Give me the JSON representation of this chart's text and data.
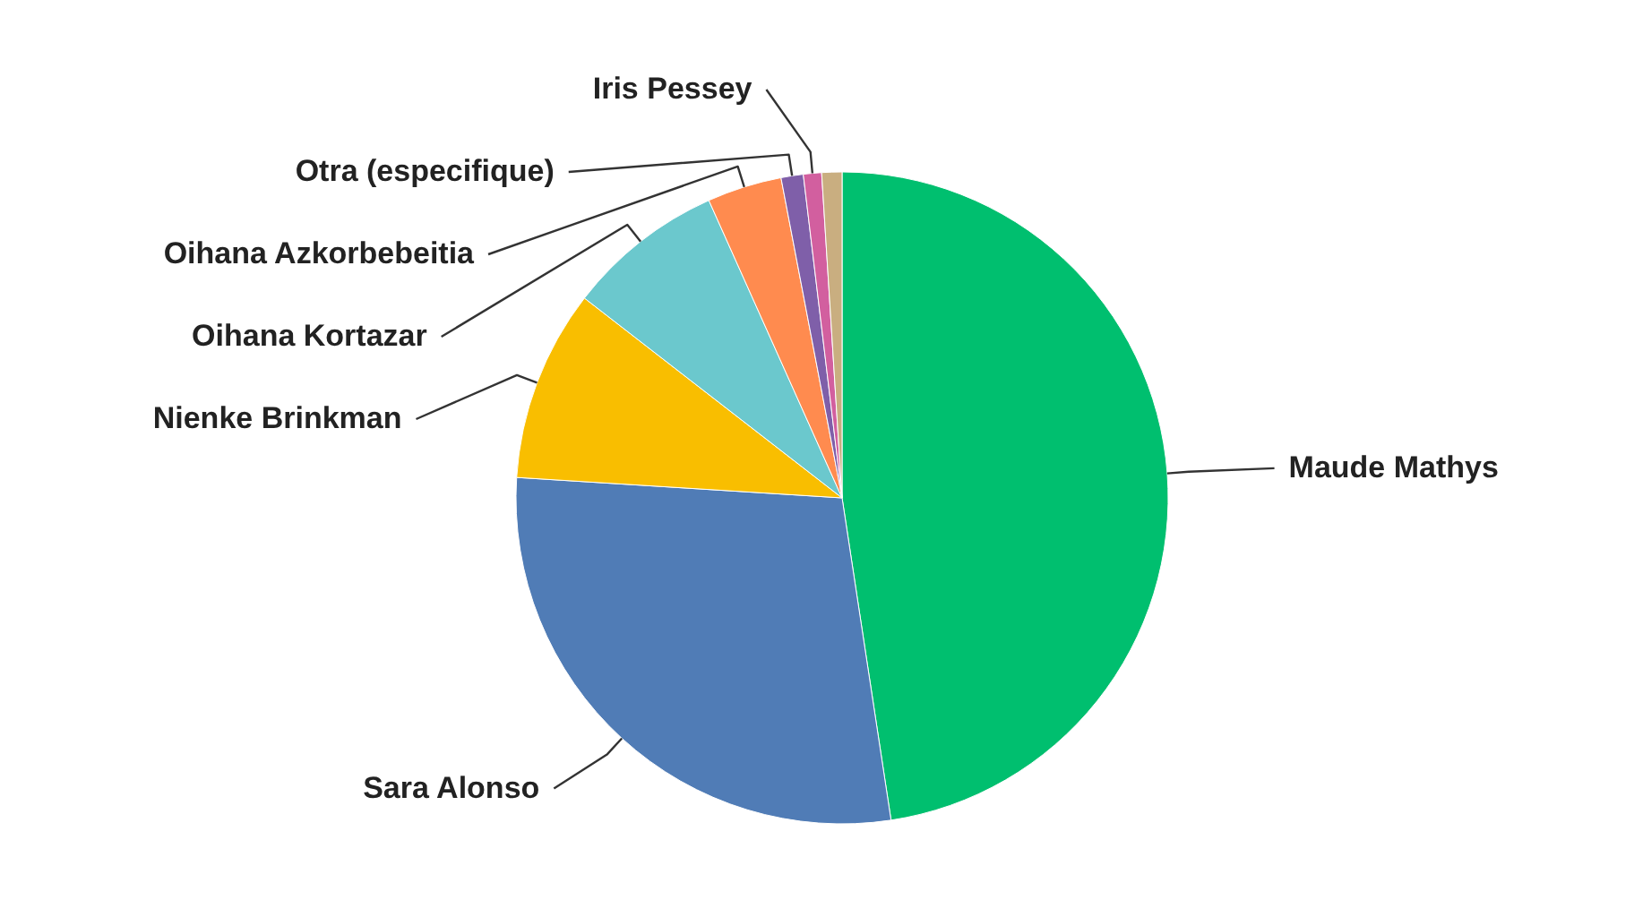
{
  "chart_data": {
    "type": "pie",
    "categories": [
      "Maude Mathys",
      "Sara Alonso",
      "Nienke Brinkman",
      "Oihana Kortazar",
      "Oihana Azkorbebeitia",
      "Otra (especifique)",
      "Iris Pessey",
      null
    ],
    "values": [
      47.6,
      28.4,
      9.5,
      7.8,
      3.7,
      1.1,
      0.9,
      1.0
    ],
    "colors": [
      "#00bf6f",
      "#507cb6",
      "#f9be00",
      "#6bc8cd",
      "#ff8b4f",
      "#7f5fa9",
      "#d25f9f",
      "#c9ae80"
    ]
  }
}
